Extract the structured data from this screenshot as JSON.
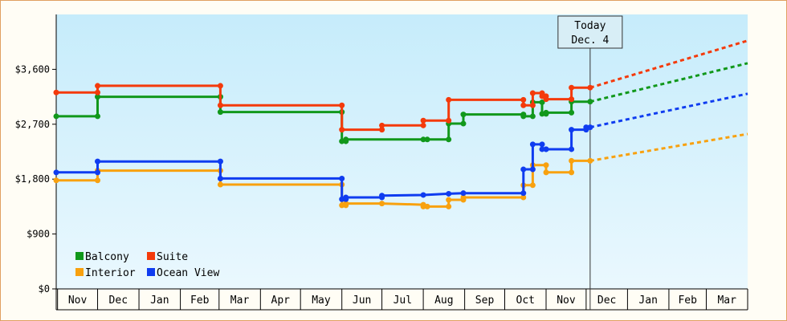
{
  "chart_data": {
    "type": "line",
    "title": "",
    "xlabel": "",
    "ylabel": "",
    "ylim": [
      0,
      4500
    ],
    "yticks": [
      0,
      900,
      1800,
      2700,
      3600
    ],
    "ytick_labels": [
      "$0",
      "$900",
      "$1,800",
      "$2,700",
      "$3,600"
    ],
    "xlim": [
      "2007-10-31",
      "2009-04-01"
    ],
    "months": [
      {
        "label": "Nov",
        "start": "2007-11-01"
      },
      {
        "label": "Dec",
        "start": "2007-12-01"
      },
      {
        "label": "Jan",
        "start": "2008-01-01"
      },
      {
        "label": "Feb",
        "start": "2008-02-01"
      },
      {
        "label": "Mar",
        "start": "2008-03-01"
      },
      {
        "label": "Apr",
        "start": "2008-04-01"
      },
      {
        "label": "May",
        "start": "2008-05-01"
      },
      {
        "label": "Jun",
        "start": "2008-06-01"
      },
      {
        "label": "Jul",
        "start": "2008-07-01"
      },
      {
        "label": "Aug",
        "start": "2008-08-01"
      },
      {
        "label": "Sep",
        "start": "2008-09-01"
      },
      {
        "label": "Oct",
        "start": "2008-10-01"
      },
      {
        "label": "Nov",
        "start": "2008-11-01"
      },
      {
        "label": "Dec",
        "start": "2008-12-01"
      },
      {
        "label": "Jan",
        "start": "2009-01-01"
      },
      {
        "label": "Feb",
        "start": "2009-02-01"
      },
      {
        "label": "Mar",
        "start": "2009-03-01"
      }
    ],
    "today": {
      "date": "2008-12-04",
      "line1": "Today",
      "line2": "Dec. 4"
    },
    "forecast_end": "2009-04-01",
    "grid": false,
    "legend": "bottom-left",
    "series": [
      {
        "name": "Balcony",
        "color": "#11981b",
        "points": [
          [
            "2007-10-31",
            2830
          ],
          [
            "2007-12-01",
            2830
          ],
          [
            "2007-12-01",
            3150
          ],
          [
            "2008-03-02",
            3150
          ],
          [
            "2008-03-02",
            2900
          ],
          [
            "2008-06-01",
            2900
          ],
          [
            "2008-06-01",
            2420
          ],
          [
            "2008-06-04",
            2420
          ],
          [
            "2008-06-04",
            2450
          ],
          [
            "2008-08-01",
            2450
          ],
          [
            "2008-08-04",
            2450
          ],
          [
            "2008-08-20",
            2450
          ],
          [
            "2008-08-20",
            2710
          ],
          [
            "2008-08-31",
            2710
          ],
          [
            "2008-08-31",
            2860
          ],
          [
            "2008-10-15",
            2860
          ],
          [
            "2008-10-15",
            2830
          ],
          [
            "2008-10-22",
            2830
          ],
          [
            "2008-10-22",
            3060
          ],
          [
            "2008-10-29",
            3060
          ],
          [
            "2008-10-29",
            2870
          ],
          [
            "2008-11-01",
            2870
          ],
          [
            "2008-11-01",
            2890
          ],
          [
            "2008-11-20",
            2890
          ],
          [
            "2008-11-20",
            3070
          ],
          [
            "2008-12-04",
            3070
          ]
        ],
        "forecast_end_value": 3700
      },
      {
        "name": "Suite",
        "color": "#f43a0b",
        "points": [
          [
            "2007-10-31",
            3220
          ],
          [
            "2007-12-01",
            3220
          ],
          [
            "2007-12-01",
            3330
          ],
          [
            "2008-03-02",
            3330
          ],
          [
            "2008-03-02",
            3010
          ],
          [
            "2008-06-01",
            3010
          ],
          [
            "2008-06-01",
            2610
          ],
          [
            "2008-07-01",
            2610
          ],
          [
            "2008-07-01",
            2680
          ],
          [
            "2008-08-01",
            2680
          ],
          [
            "2008-08-01",
            2760
          ],
          [
            "2008-08-20",
            2760
          ],
          [
            "2008-08-20",
            3100
          ],
          [
            "2008-10-15",
            3100
          ],
          [
            "2008-10-15",
            3010
          ],
          [
            "2008-10-22",
            3010
          ],
          [
            "2008-10-22",
            3210
          ],
          [
            "2008-10-29",
            3210
          ],
          [
            "2008-10-29",
            3160
          ],
          [
            "2008-11-01",
            3160
          ],
          [
            "2008-11-01",
            3110
          ],
          [
            "2008-11-20",
            3110
          ],
          [
            "2008-11-20",
            3300
          ],
          [
            "2008-12-04",
            3300
          ]
        ],
        "forecast_end_value": 4070
      },
      {
        "name": "Interior",
        "color": "#f8a10f",
        "points": [
          [
            "2007-10-31",
            1780
          ],
          [
            "2007-12-01",
            1780
          ],
          [
            "2007-12-01",
            1940
          ],
          [
            "2008-03-02",
            1940
          ],
          [
            "2008-03-02",
            1710
          ],
          [
            "2008-06-01",
            1710
          ],
          [
            "2008-06-01",
            1370
          ],
          [
            "2008-06-04",
            1370
          ],
          [
            "2008-06-04",
            1400
          ],
          [
            "2008-07-01",
            1400
          ],
          [
            "2008-08-01",
            1380
          ],
          [
            "2008-08-01",
            1350
          ],
          [
            "2008-08-04",
            1350
          ],
          [
            "2008-08-20",
            1350
          ],
          [
            "2008-08-20",
            1460
          ],
          [
            "2008-08-31",
            1460
          ],
          [
            "2008-08-31",
            1500
          ],
          [
            "2008-10-15",
            1500
          ],
          [
            "2008-10-15",
            1700
          ],
          [
            "2008-10-22",
            1700
          ],
          [
            "2008-10-22",
            2030
          ],
          [
            "2008-11-01",
            2030
          ],
          [
            "2008-11-01",
            1910
          ],
          [
            "2008-11-20",
            1910
          ],
          [
            "2008-11-20",
            2100
          ],
          [
            "2008-12-04",
            2100
          ]
        ],
        "forecast_end_value": 2540
      },
      {
        "name": "Ocean View",
        "color": "#0f3cf0",
        "points": [
          [
            "2007-10-31",
            1910
          ],
          [
            "2007-12-01",
            1910
          ],
          [
            "2007-12-01",
            2090
          ],
          [
            "2008-03-02",
            2090
          ],
          [
            "2008-03-02",
            1810
          ],
          [
            "2008-06-01",
            1810
          ],
          [
            "2008-06-01",
            1470
          ],
          [
            "2008-06-04",
            1470
          ],
          [
            "2008-06-04",
            1500
          ],
          [
            "2008-07-01",
            1500
          ],
          [
            "2008-07-01",
            1530
          ],
          [
            "2008-08-01",
            1540
          ],
          [
            "2008-08-20",
            1560
          ],
          [
            "2008-08-31",
            1570
          ],
          [
            "2008-10-15",
            1570
          ],
          [
            "2008-10-15",
            1960
          ],
          [
            "2008-10-22",
            1960
          ],
          [
            "2008-10-22",
            2370
          ],
          [
            "2008-10-29",
            2370
          ],
          [
            "2008-10-29",
            2290
          ],
          [
            "2008-11-01",
            2290
          ],
          [
            "2008-11-01",
            2290
          ],
          [
            "2008-11-20",
            2290
          ],
          [
            "2008-11-20",
            2610
          ],
          [
            "2008-12-01",
            2610
          ],
          [
            "2008-12-01",
            2650
          ],
          [
            "2008-12-04",
            2650
          ]
        ],
        "forecast_end_value": 3200
      }
    ]
  }
}
